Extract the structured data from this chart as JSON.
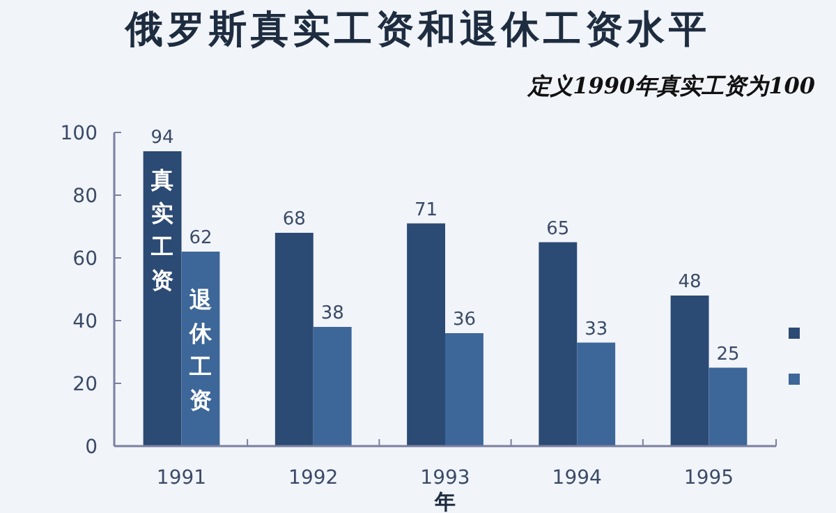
{
  "chart_data": {
    "type": "bar",
    "title": "俄罗斯真实工资和退休工资水平",
    "subtitle": "定义1990年真实工资为100",
    "xlabel": "年",
    "categories": [
      "1991",
      "1992",
      "1993",
      "1994",
      "1995"
    ],
    "series": [
      {
        "name": "真实工资",
        "color": "#2b4a74",
        "values": [
          94,
          68,
          71,
          65,
          48
        ]
      },
      {
        "name": "退休工资",
        "color": "#3d6699",
        "values": [
          62,
          38,
          36,
          33,
          25
        ]
      }
    ],
    "ylim": [
      0,
      100
    ],
    "yticks": [
      0,
      20,
      40,
      60,
      80,
      100
    ],
    "grid": false,
    "data_labels": true
  }
}
